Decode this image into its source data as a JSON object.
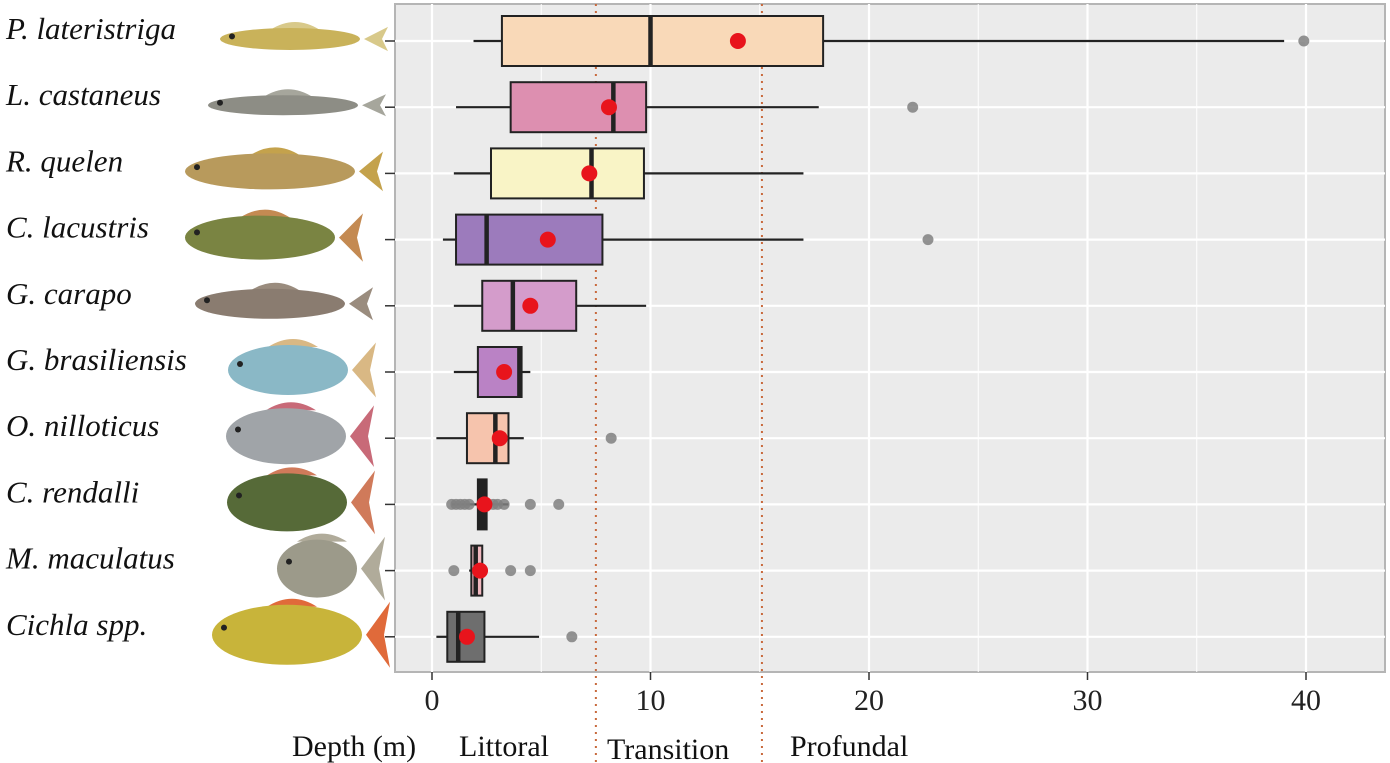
{
  "chart_data": {
    "type": "boxplot",
    "orientation": "horizontal",
    "xlabel": "Depth (m)",
    "xlim": [
      -1.6,
      43.2
    ],
    "xticks": [
      0,
      10,
      20,
      30,
      40
    ],
    "grid": true,
    "zones": [
      {
        "label": "Littoral",
        "end": 7.5
      },
      {
        "label": "Transition",
        "start": 7.5,
        "end": 15.1
      },
      {
        "label": "Profundal",
        "start": 15.1
      }
    ],
    "colors": {
      "panel": "#ebebeb",
      "grid": "#ffffff",
      "mean_point": "#e8141c",
      "outlier": "#808080",
      "zone_line": "#c8693c"
    },
    "species": [
      {
        "name": "P. lateristriga",
        "fish_icon": "catfish-icon",
        "whisker_low": 1.9,
        "q1": 3.2,
        "median": 10.0,
        "q3": 17.9,
        "whisker_high": 39.0,
        "mean": 14.0,
        "outliers": [
          39.9
        ],
        "color": "#f9d9b8"
      },
      {
        "name": "L. castaneus",
        "fish_icon": "armored-catfish-icon",
        "whisker_low": 1.1,
        "q1": 3.6,
        "median": 8.3,
        "q3": 9.8,
        "whisker_high": 17.7,
        "mean": 8.1,
        "outliers": [
          22.0
        ],
        "color": "#dd8fb0"
      },
      {
        "name": "R. quelen",
        "fish_icon": "catfish-icon",
        "whisker_low": 1.0,
        "q1": 2.7,
        "median": 7.3,
        "q3": 9.7,
        "whisker_high": 17.0,
        "mean": 7.2,
        "outliers": [],
        "color": "#f9f4c6"
      },
      {
        "name": "C. lacustris",
        "fish_icon": "perch-icon",
        "whisker_low": 0.5,
        "q1": 1.1,
        "median": 2.5,
        "q3": 7.8,
        "whisker_high": 17.0,
        "mean": 5.3,
        "outliers": [
          22.7
        ],
        "color": "#9c7bbc"
      },
      {
        "name": "G. carapo",
        "fish_icon": "knifefish-icon",
        "whisker_low": 1.0,
        "q1": 2.3,
        "median": 3.7,
        "q3": 6.6,
        "whisker_high": 9.8,
        "mean": 4.5,
        "outliers": [],
        "color": "#d49ccb"
      },
      {
        "name": "G. brasiliensis",
        "fish_icon": "cichlid-icon",
        "whisker_low": 1.0,
        "q1": 2.1,
        "median": 4.0,
        "q3": 4.1,
        "whisker_high": 4.5,
        "mean": 3.3,
        "outliers": [],
        "color": "#ba82c5"
      },
      {
        "name": "O. nilloticus",
        "fish_icon": "tilapia-icon",
        "whisker_low": 0.2,
        "q1": 1.6,
        "median": 2.9,
        "q3": 3.5,
        "whisker_high": 4.2,
        "mean": 3.1,
        "outliers": [
          8.2
        ],
        "color": "#f6c4ad"
      },
      {
        "name": "C. rendalli",
        "fish_icon": "banded-tilapia-icon",
        "whisker_low": 0.9,
        "q1": 2.1,
        "median": 2.3,
        "q3": 2.5,
        "whisker_high": 3.5,
        "mean": 2.4,
        "outliers": [
          0.9,
          1.1,
          1.3,
          1.5,
          1.7,
          2.8,
          3.0,
          3.3,
          4.5,
          5.8
        ],
        "color": "#222222"
      },
      {
        "name": "M. maculatus",
        "fish_icon": "piranha-icon",
        "whisker_low": 1.7,
        "q1": 1.8,
        "median": 2.0,
        "q3": 2.3,
        "whisker_high": 2.4,
        "mean": 2.2,
        "outliers": [
          1.0,
          3.6,
          4.5
        ],
        "color": "#f0b8bf"
      },
      {
        "name": "Cichla spp.",
        "fish_icon": "peacock-bass-icon",
        "whisker_low": 0.2,
        "q1": 0.7,
        "median": 1.2,
        "q3": 2.4,
        "whisker_high": 4.9,
        "mean": 1.6,
        "outliers": [
          6.4
        ],
        "color": "#6e6e6e"
      }
    ]
  }
}
